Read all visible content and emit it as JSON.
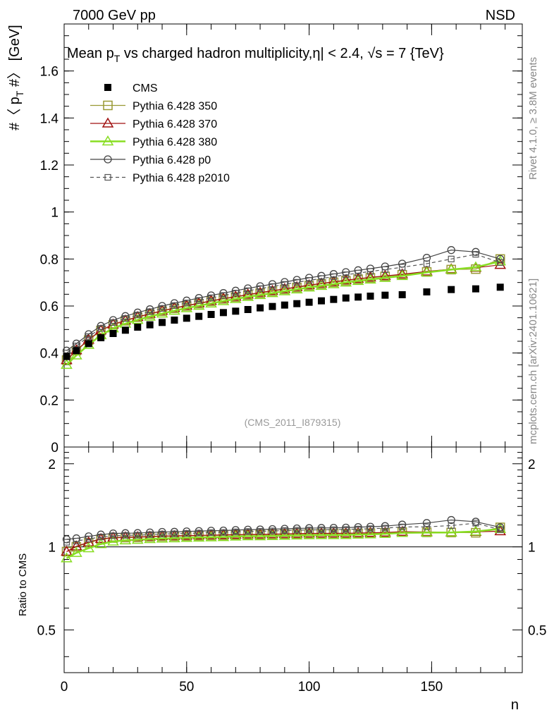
{
  "header": {
    "left": "7000 GeV pp",
    "right": "NSD"
  },
  "side_labels": {
    "rivet": "Rivet 4.1.0, ≥ 3.8M events",
    "mcplots": "mcplots.cern.ch [arXiv:2401.10621]"
  },
  "chart_data": {
    "type": "scatter",
    "title": "Mean p_T vs charged hadron multiplicity, |η| < 2.4, √s = 7 {TeV}",
    "title_parts": {
      "a": "Mean p",
      "sub": "T",
      "b": " vs charged hadron multiplicity,",
      "c": "η| < 2.4, ",
      "d": "√s = 7 {TeV}"
    },
    "ylabel_parts": {
      "a": "#〈 p",
      "sub": "T",
      "b": " #〉 [GeV]"
    },
    "xlabel": "n",
    "ratio_ylabel": "Ratio to CMS",
    "watermark": "(CMS_2011_I879315)",
    "xlim": [
      0,
      187
    ],
    "ylim": [
      0,
      1.8
    ],
    "ratio_ylim": [
      0.35,
      2.3
    ],
    "x_ticks": [
      0,
      50,
      100,
      150
    ],
    "y_ticks": [
      0,
      0.2,
      0.4,
      0.6,
      0.8,
      1,
      1.2,
      1.4,
      1.6
    ],
    "y_tick_labels": [
      "0",
      "0.2",
      "0.4",
      "0.6",
      "0.8",
      "1",
      "1.2",
      "1.4",
      "1.6"
    ],
    "ratio_ticks": [
      0.5,
      1,
      2
    ],
    "ratio_tick_labels": [
      "0.5",
      "1",
      "2"
    ],
    "legend_position": "top-left",
    "series": [
      {
        "name": "CMS",
        "color": "#000000",
        "marker": "filled-square",
        "points": [
          [
            1,
            0.385
          ],
          [
            5,
            0.41
          ],
          [
            10,
            0.44
          ],
          [
            15,
            0.465
          ],
          [
            20,
            0.483
          ],
          [
            25,
            0.497
          ],
          [
            30,
            0.51
          ],
          [
            35,
            0.52
          ],
          [
            40,
            0.53
          ],
          [
            45,
            0.54
          ],
          [
            50,
            0.548
          ],
          [
            55,
            0.556
          ],
          [
            60,
            0.564
          ],
          [
            65,
            0.572
          ],
          [
            70,
            0.578
          ],
          [
            75,
            0.585
          ],
          [
            80,
            0.592
          ],
          [
            85,
            0.598
          ],
          [
            90,
            0.604
          ],
          [
            95,
            0.61
          ],
          [
            100,
            0.616
          ],
          [
            105,
            0.622
          ],
          [
            110,
            0.628
          ],
          [
            115,
            0.634
          ],
          [
            120,
            0.638
          ],
          [
            125,
            0.642
          ],
          [
            131,
            0.646
          ],
          [
            138,
            0.648
          ],
          [
            148,
            0.66
          ],
          [
            158,
            0.67
          ],
          [
            168,
            0.673
          ],
          [
            178,
            0.68
          ]
        ]
      },
      {
        "name": "Pythia 6.428 350",
        "color": "#999933",
        "marker": "open-square",
        "line": "solid",
        "points": [
          [
            1,
            0.37
          ],
          [
            5,
            0.41
          ],
          [
            10,
            0.455
          ],
          [
            15,
            0.495
          ],
          [
            20,
            0.52
          ],
          [
            25,
            0.537
          ],
          [
            30,
            0.552
          ],
          [
            35,
            0.565
          ],
          [
            40,
            0.578
          ],
          [
            45,
            0.59
          ],
          [
            50,
            0.6
          ],
          [
            55,
            0.61
          ],
          [
            60,
            0.62
          ],
          [
            65,
            0.63
          ],
          [
            70,
            0.638
          ],
          [
            75,
            0.647
          ],
          [
            80,
            0.655
          ],
          [
            85,
            0.663
          ],
          [
            90,
            0.671
          ],
          [
            95,
            0.679
          ],
          [
            100,
            0.687
          ],
          [
            105,
            0.694
          ],
          [
            110,
            0.701
          ],
          [
            115,
            0.708
          ],
          [
            120,
            0.714
          ],
          [
            125,
            0.72
          ],
          [
            131,
            0.726
          ],
          [
            138,
            0.733
          ],
          [
            148,
            0.745
          ],
          [
            158,
            0.755
          ],
          [
            168,
            0.757
          ],
          [
            178,
            0.8
          ]
        ]
      },
      {
        "name": "Pythia 6.428 370",
        "color": "#a01010",
        "marker": "open-triangle",
        "line": "solid",
        "points": [
          [
            1,
            0.37
          ],
          [
            5,
            0.412
          ],
          [
            10,
            0.457
          ],
          [
            15,
            0.497
          ],
          [
            20,
            0.522
          ],
          [
            25,
            0.539
          ],
          [
            30,
            0.554
          ],
          [
            35,
            0.567
          ],
          [
            40,
            0.58
          ],
          [
            45,
            0.592
          ],
          [
            50,
            0.602
          ],
          [
            55,
            0.612
          ],
          [
            60,
            0.622
          ],
          [
            65,
            0.632
          ],
          [
            70,
            0.64
          ],
          [
            75,
            0.649
          ],
          [
            80,
            0.657
          ],
          [
            85,
            0.665
          ],
          [
            90,
            0.673
          ],
          [
            95,
            0.681
          ],
          [
            100,
            0.689
          ],
          [
            105,
            0.696
          ],
          [
            110,
            0.703
          ],
          [
            115,
            0.71
          ],
          [
            120,
            0.716
          ],
          [
            125,
            0.722
          ],
          [
            131,
            0.728
          ],
          [
            138,
            0.735
          ],
          [
            148,
            0.747
          ],
          [
            158,
            0.757
          ],
          [
            168,
            0.763
          ],
          [
            178,
            0.775
          ]
        ]
      },
      {
        "name": "Pythia 6.428 380",
        "color": "#88dd22",
        "marker": "open-triangle",
        "line": "solid-thick",
        "points": [
          [
            1,
            0.35
          ],
          [
            5,
            0.39
          ],
          [
            10,
            0.435
          ],
          [
            15,
            0.476
          ],
          [
            20,
            0.505
          ],
          [
            25,
            0.525
          ],
          [
            30,
            0.541
          ],
          [
            35,
            0.555
          ],
          [
            40,
            0.568
          ],
          [
            45,
            0.58
          ],
          [
            50,
            0.591
          ],
          [
            55,
            0.601
          ],
          [
            60,
            0.611
          ],
          [
            65,
            0.621
          ],
          [
            70,
            0.63
          ],
          [
            75,
            0.639
          ],
          [
            80,
            0.647
          ],
          [
            85,
            0.655
          ],
          [
            90,
            0.663
          ],
          [
            95,
            0.671
          ],
          [
            100,
            0.679
          ],
          [
            105,
            0.686
          ],
          [
            110,
            0.693
          ],
          [
            115,
            0.7
          ],
          [
            120,
            0.707
          ],
          [
            125,
            0.713
          ],
          [
            131,
            0.72
          ],
          [
            138,
            0.728
          ],
          [
            148,
            0.743
          ],
          [
            158,
            0.755
          ],
          [
            168,
            0.765
          ],
          [
            178,
            0.79
          ]
        ]
      },
      {
        "name": "Pythia 6.428 p0",
        "color": "#444444",
        "marker": "open-circle",
        "line": "solid",
        "points": [
          [
            1,
            0.41
          ],
          [
            5,
            0.44
          ],
          [
            10,
            0.48
          ],
          [
            15,
            0.515
          ],
          [
            20,
            0.54
          ],
          [
            25,
            0.557
          ],
          [
            30,
            0.572
          ],
          [
            35,
            0.586
          ],
          [
            40,
            0.6
          ],
          [
            45,
            0.612
          ],
          [
            50,
            0.623
          ],
          [
            55,
            0.634
          ],
          [
            60,
            0.645
          ],
          [
            65,
            0.655
          ],
          [
            70,
            0.665
          ],
          [
            75,
            0.675
          ],
          [
            80,
            0.684
          ],
          [
            85,
            0.693
          ],
          [
            90,
            0.702
          ],
          [
            95,
            0.711
          ],
          [
            100,
            0.72
          ],
          [
            105,
            0.728
          ],
          [
            110,
            0.736
          ],
          [
            115,
            0.744
          ],
          [
            120,
            0.752
          ],
          [
            125,
            0.759
          ],
          [
            131,
            0.768
          ],
          [
            138,
            0.78
          ],
          [
            148,
            0.805
          ],
          [
            158,
            0.838
          ],
          [
            168,
            0.83
          ],
          [
            178,
            0.8
          ]
        ]
      },
      {
        "name": "Pythia 6.428 p2010",
        "color": "#555555",
        "marker": "open-square-small",
        "line": "dashed",
        "points": [
          [
            1,
            0.4
          ],
          [
            5,
            0.43
          ],
          [
            10,
            0.47
          ],
          [
            15,
            0.505
          ],
          [
            20,
            0.53
          ],
          [
            25,
            0.547
          ],
          [
            30,
            0.562
          ],
          [
            35,
            0.576
          ],
          [
            40,
            0.59
          ],
          [
            45,
            0.602
          ],
          [
            50,
            0.613
          ],
          [
            55,
            0.624
          ],
          [
            60,
            0.635
          ],
          [
            65,
            0.645
          ],
          [
            70,
            0.655
          ],
          [
            75,
            0.665
          ],
          [
            80,
            0.674
          ],
          [
            85,
            0.683
          ],
          [
            90,
            0.692
          ],
          [
            95,
            0.701
          ],
          [
            100,
            0.709
          ],
          [
            105,
            0.717
          ],
          [
            110,
            0.725
          ],
          [
            115,
            0.733
          ],
          [
            120,
            0.74
          ],
          [
            125,
            0.747
          ],
          [
            131,
            0.755
          ],
          [
            138,
            0.765
          ],
          [
            148,
            0.78
          ],
          [
            158,
            0.8
          ],
          [
            168,
            0.82
          ],
          [
            178,
            0.785
          ]
        ]
      }
    ]
  }
}
